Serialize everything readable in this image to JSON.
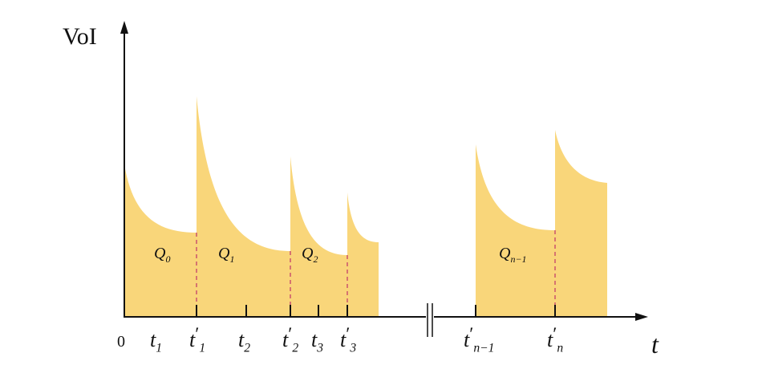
{
  "axes": {
    "y_label": "VoI",
    "x_label": "t",
    "origin": "0"
  },
  "ticks": [
    {
      "base": "t",
      "sub": "1"
    },
    {
      "base": "t",
      "prime": "′",
      "sub": "1"
    },
    {
      "base": "t",
      "sub": "2"
    },
    {
      "base": "t",
      "prime": "′",
      "sub": "2"
    },
    {
      "base": "t",
      "sub": "3"
    },
    {
      "base": "t",
      "prime": "′",
      "sub": "3"
    },
    {
      "base": "t",
      "prime": "′",
      "sub": "n−1"
    },
    {
      "base": "t",
      "prime": "′",
      "sub": "n"
    }
  ],
  "regions": [
    {
      "base": "Q",
      "sub": "0"
    },
    {
      "base": "Q",
      "sub": "1"
    },
    {
      "base": "Q",
      "sub": "2"
    },
    {
      "base": "Q",
      "sub": "n−1"
    }
  ]
}
